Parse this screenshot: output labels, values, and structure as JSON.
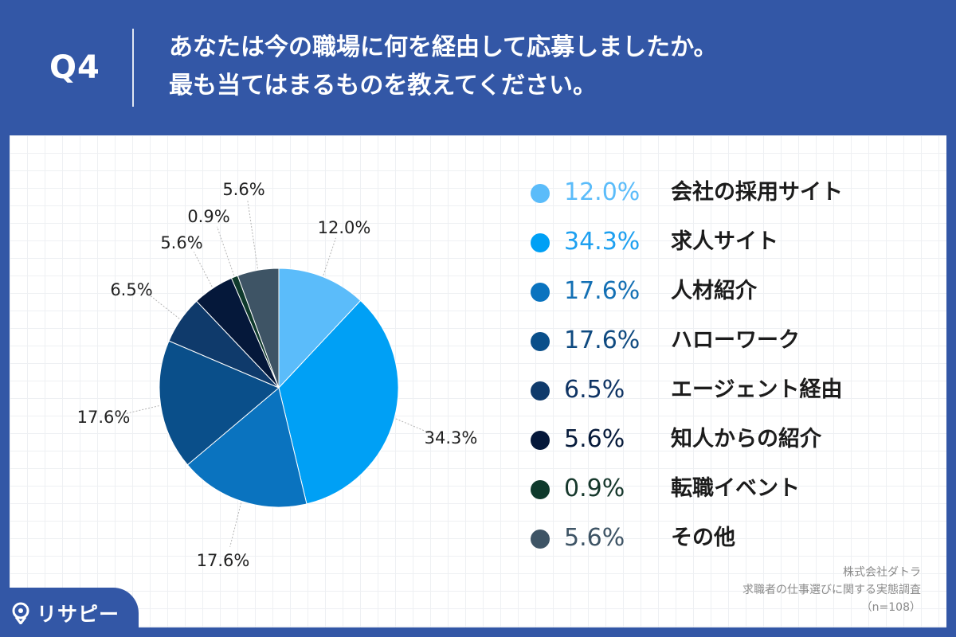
{
  "header": {
    "question_no": "Q4",
    "question_line1": "あなたは今の職場に何を経由して応募しましたか。",
    "question_line2": "最も当てはまるものを教えてください。"
  },
  "chart_data": {
    "type": "pie",
    "title": "",
    "categories": [
      "会社の採用サイト",
      "求人サイト",
      "人材紹介",
      "ハローワーク",
      "エージェント経由",
      "知人からの紹介",
      "転職イベント",
      "その他"
    ],
    "values": [
      12.0,
      34.3,
      17.6,
      17.6,
      6.5,
      5.6,
      0.9,
      5.6
    ],
    "value_labels": [
      "12.0%",
      "34.3%",
      "17.6%",
      "17.6%",
      "6.5%",
      "5.6%",
      "0.9%",
      "5.6%"
    ],
    "colors": [
      "#5bbcfa",
      "#00a0f5",
      "#0a73bf",
      "#0a4f8a",
      "#0f3a6b",
      "#05183a",
      "#0f3a2c",
      "#3e5465"
    ],
    "legend_text_colors": [
      "#5bbcfa",
      "#1ea0f0",
      "#1470b4",
      "#0f4a80",
      "#0f3464",
      "#061a3a",
      "#16382c",
      "#3e5465"
    ],
    "legend_placement": "right"
  },
  "source": {
    "company": "株式会社ダトラ",
    "survey": "求職者の仕事選びに関する実態調査",
    "sample": "（n=108）"
  },
  "brand": {
    "name": "リサピー",
    "icon": "location-pin-icon"
  }
}
